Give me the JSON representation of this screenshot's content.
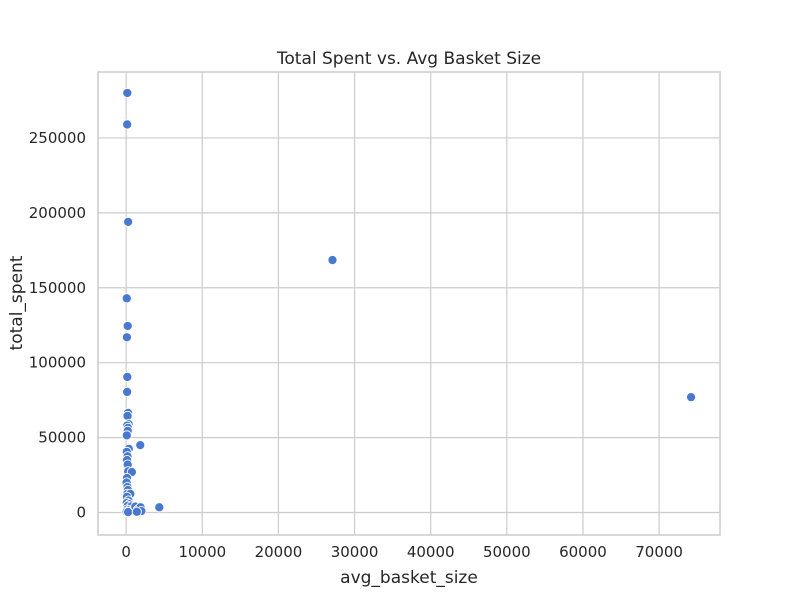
{
  "chart_data": {
    "type": "scatter",
    "title": "Total Spent vs. Avg Basket Size",
    "xlabel": "avg_basket_size",
    "ylabel": "total_spent",
    "xlim": [
      -3700,
      78000
    ],
    "ylim": [
      -15000,
      294000
    ],
    "x_ticks": [
      0,
      10000,
      20000,
      30000,
      40000,
      50000,
      60000,
      70000
    ],
    "x_tick_labels": [
      "0",
      "10000",
      "20000",
      "30000",
      "40000",
      "50000",
      "60000",
      "70000"
    ],
    "y_ticks": [
      0,
      50000,
      100000,
      150000,
      200000,
      250000
    ],
    "y_tick_labels": [
      "0",
      "50000",
      "100000",
      "150000",
      "200000",
      "250000"
    ],
    "grid": true,
    "point_color": "#4878d0",
    "series": [
      {
        "points": [
          [
            74200,
            77000
          ],
          [
            27100,
            168500
          ],
          [
            150,
            280000
          ],
          [
            130,
            259000
          ],
          [
            260,
            194000
          ],
          [
            80,
            143000
          ],
          [
            200,
            124500
          ],
          [
            100,
            117000
          ],
          [
            150,
            90500
          ],
          [
            130,
            80500
          ],
          [
            250,
            66500
          ],
          [
            180,
            64500
          ],
          [
            320,
            59000
          ],
          [
            120,
            58000
          ],
          [
            240,
            56500
          ],
          [
            210,
            54500
          ],
          [
            90,
            51500
          ],
          [
            350,
            42500
          ],
          [
            80,
            40500
          ],
          [
            180,
            37500
          ],
          [
            120,
            35000
          ],
          [
            200,
            32000
          ],
          [
            260,
            27500
          ],
          [
            750,
            27000
          ],
          [
            110,
            23000
          ],
          [
            60,
            20000
          ],
          [
            170,
            17000
          ],
          [
            230,
            15000
          ],
          [
            140,
            12500
          ],
          [
            550,
            12500
          ],
          [
            100,
            10500
          ],
          [
            300,
            8000
          ],
          [
            80,
            6500
          ],
          [
            420,
            5500
          ],
          [
            200,
            4500
          ],
          [
            650,
            4000
          ],
          [
            120,
            2000
          ],
          [
            380,
            1500
          ],
          [
            900,
            1500
          ],
          [
            60,
            500
          ],
          [
            250,
            300
          ],
          [
            1850,
            45000
          ],
          [
            1200,
            4000
          ],
          [
            1550,
            2000
          ],
          [
            1900,
            3500
          ],
          [
            2000,
            1000
          ],
          [
            1400,
            500
          ],
          [
            4350,
            3500
          ]
        ]
      }
    ]
  }
}
